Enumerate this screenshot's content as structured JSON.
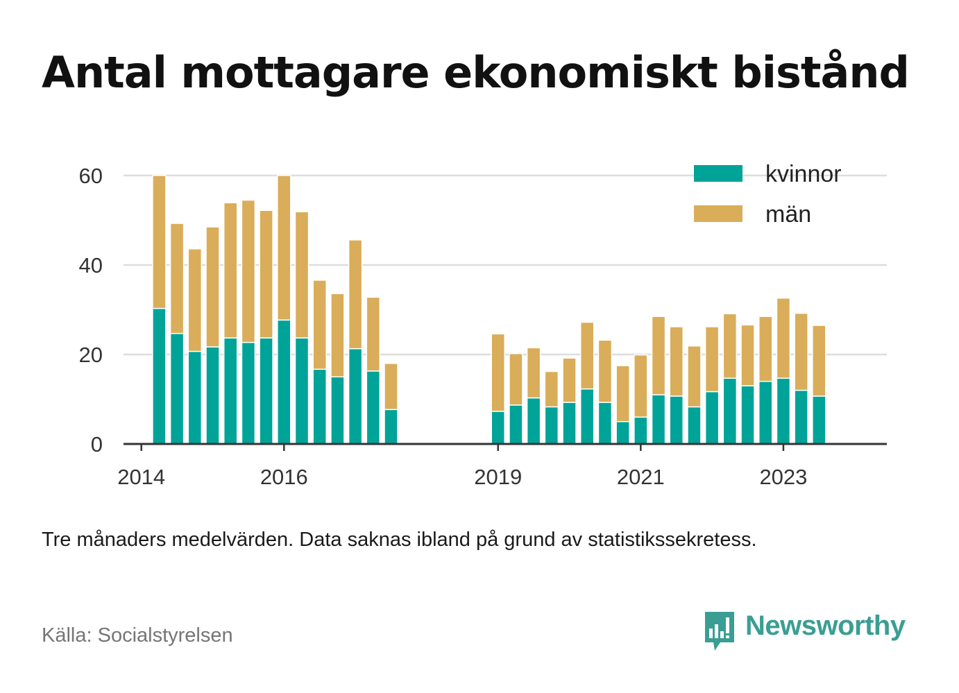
{
  "title": "Antal mottagare ekonomiskt bistånd",
  "note": "Tre månaders medelvärden. Data saknas ibland på grund av statistikssekretess.",
  "source": "Källa: Socialstyrelsen",
  "brand": {
    "name": "Newsworthy",
    "color": "#3a9e93"
  },
  "colors": {
    "kvinnor": "#00a398",
    "man": "#d9ad59",
    "grid": "#dddddd",
    "axis": "#333333"
  },
  "chart_data": {
    "type": "bar",
    "stacked": true,
    "xlim": [
      2013.75,
      2024.45
    ],
    "ylim": [
      0,
      60
    ],
    "yticks": [
      0,
      20,
      40,
      60
    ],
    "xticks": [
      2014,
      2016,
      2019,
      2021,
      2023
    ],
    "grid": true,
    "legend_position": "top-right",
    "x": [
      2014.25,
      2014.5,
      2014.75,
      2015.0,
      2015.25,
      2015.5,
      2015.75,
      2016.0,
      2016.25,
      2016.5,
      2016.75,
      2017.0,
      2017.25,
      2017.5,
      2019.0,
      2019.25,
      2019.5,
      2019.75,
      2020.0,
      2020.25,
      2020.5,
      2020.75,
      2021.0,
      2021.25,
      2021.5,
      2021.75,
      2022.0,
      2022.25,
      2022.5,
      2022.75,
      2023.0,
      2023.25,
      2023.5
    ],
    "series": [
      {
        "name": "kvinnor",
        "values": [
          30.3,
          24.7,
          20.7,
          21.7,
          23.7,
          22.7,
          23.7,
          27.7,
          23.7,
          16.7,
          15.0,
          21.3,
          16.3,
          7.7,
          7.3,
          8.7,
          10.3,
          8.3,
          9.3,
          12.3,
          9.3,
          5.0,
          6.0,
          11.0,
          10.7,
          8.3,
          11.7,
          14.7,
          13.0,
          14.0,
          14.7,
          12.0,
          10.7
        ]
      },
      {
        "name": "män",
        "values": [
          29.7,
          24.6,
          22.9,
          26.8,
          30.2,
          31.8,
          28.5,
          32.3,
          28.2,
          19.9,
          18.6,
          24.3,
          16.5,
          10.3,
          17.3,
          11.5,
          11.2,
          7.9,
          9.9,
          14.9,
          13.9,
          12.5,
          13.9,
          17.5,
          15.5,
          13.6,
          14.5,
          14.4,
          13.6,
          14.5,
          17.9,
          17.2,
          15.8
        ]
      }
    ]
  }
}
